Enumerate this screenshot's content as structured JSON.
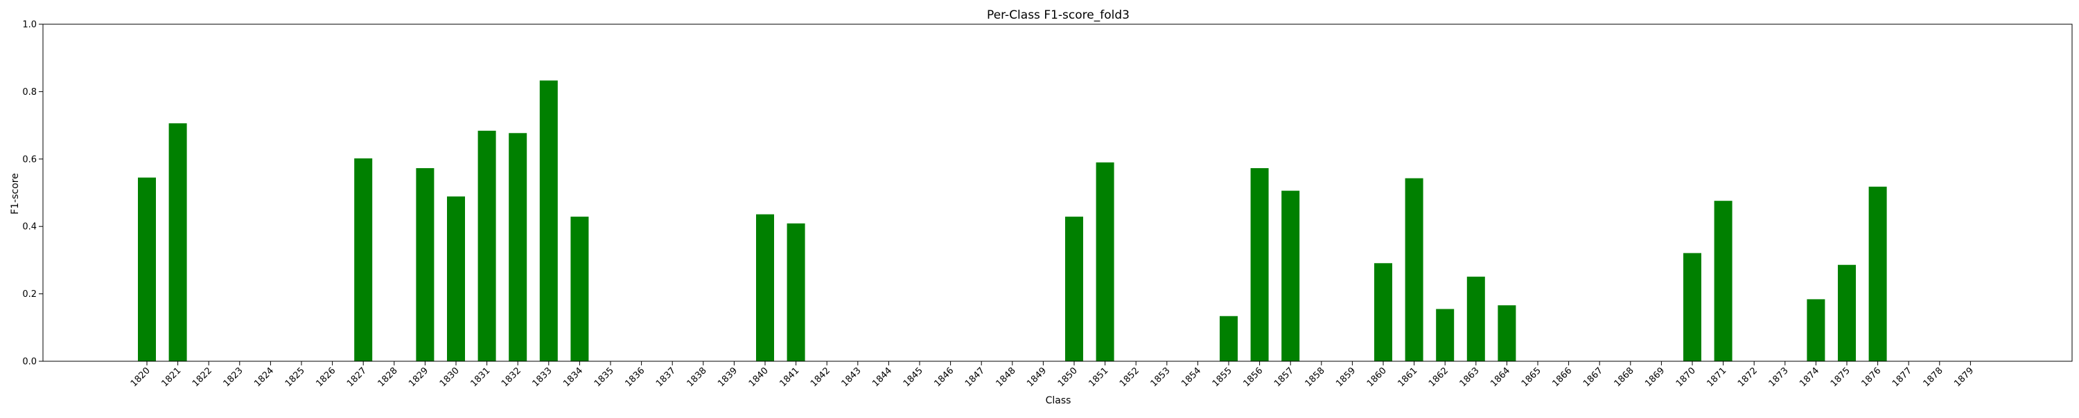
{
  "chart_data": {
    "type": "bar",
    "title": "Per-Class F1-score_fold3",
    "xlabel": "Class",
    "ylabel": "F1-score",
    "ylim": [
      0,
      1.0
    ],
    "yticks": [
      "0.0",
      "0.2",
      "0.4",
      "0.6",
      "0.8",
      "1.0"
    ],
    "grid": false,
    "bar_color": "#008000",
    "categories": [
      "1820",
      "1821",
      "1822",
      "1823",
      "1824",
      "1825",
      "1826",
      "1827",
      "1828",
      "1829",
      "1830",
      "1831",
      "1832",
      "1833",
      "1834",
      "1835",
      "1836",
      "1837",
      "1838",
      "1839",
      "1840",
      "1841",
      "1842",
      "1843",
      "1844",
      "1845",
      "1846",
      "1847",
      "1848",
      "1849",
      "1850",
      "1851",
      "1852",
      "1853",
      "1854",
      "1855",
      "1856",
      "1857",
      "1858",
      "1859",
      "1860",
      "1861",
      "1862",
      "1863",
      "1864",
      "1865",
      "1866",
      "1867",
      "1868",
      "1869",
      "1870",
      "1871",
      "1872",
      "1873",
      "1874",
      "1875",
      "1876",
      "1877",
      "1878",
      "1879"
    ],
    "values": [
      0.545,
      0.706,
      0,
      0,
      0,
      0,
      0,
      0.602,
      0,
      0.573,
      0.489,
      0.684,
      0.677,
      0.833,
      0.429,
      0,
      0,
      0,
      0,
      0,
      0.436,
      0.409,
      0,
      0,
      0,
      0,
      0,
      0,
      0,
      0,
      0.429,
      0.59,
      0,
      0,
      0,
      0.134,
      0.573,
      0.506,
      0,
      0,
      0.291,
      0.543,
      0.155,
      0.251,
      0.166,
      0,
      0,
      0,
      0,
      0,
      0.321,
      0.476,
      0,
      0,
      0.184,
      0.286,
      0.518,
      0,
      0,
      0
    ]
  }
}
